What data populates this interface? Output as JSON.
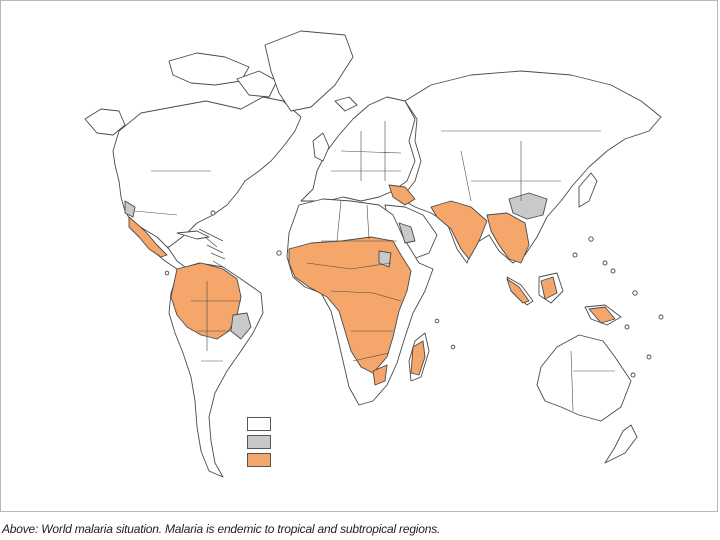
{
  "caption": "Above: World malaria situation. Malaria is endemic to tropical and subtropical regions.",
  "colors": {
    "land": "#ffffff",
    "outline": "#4a4a4a",
    "endemic": "#f5a66a",
    "limited_risk": "#c9c9c9"
  },
  "legend": {
    "items": [
      {
        "swatch_color": "#ffffff"
      },
      {
        "swatch_color": "#c8c8c8"
      },
      {
        "swatch_color": "#f5a66a"
      }
    ]
  }
}
